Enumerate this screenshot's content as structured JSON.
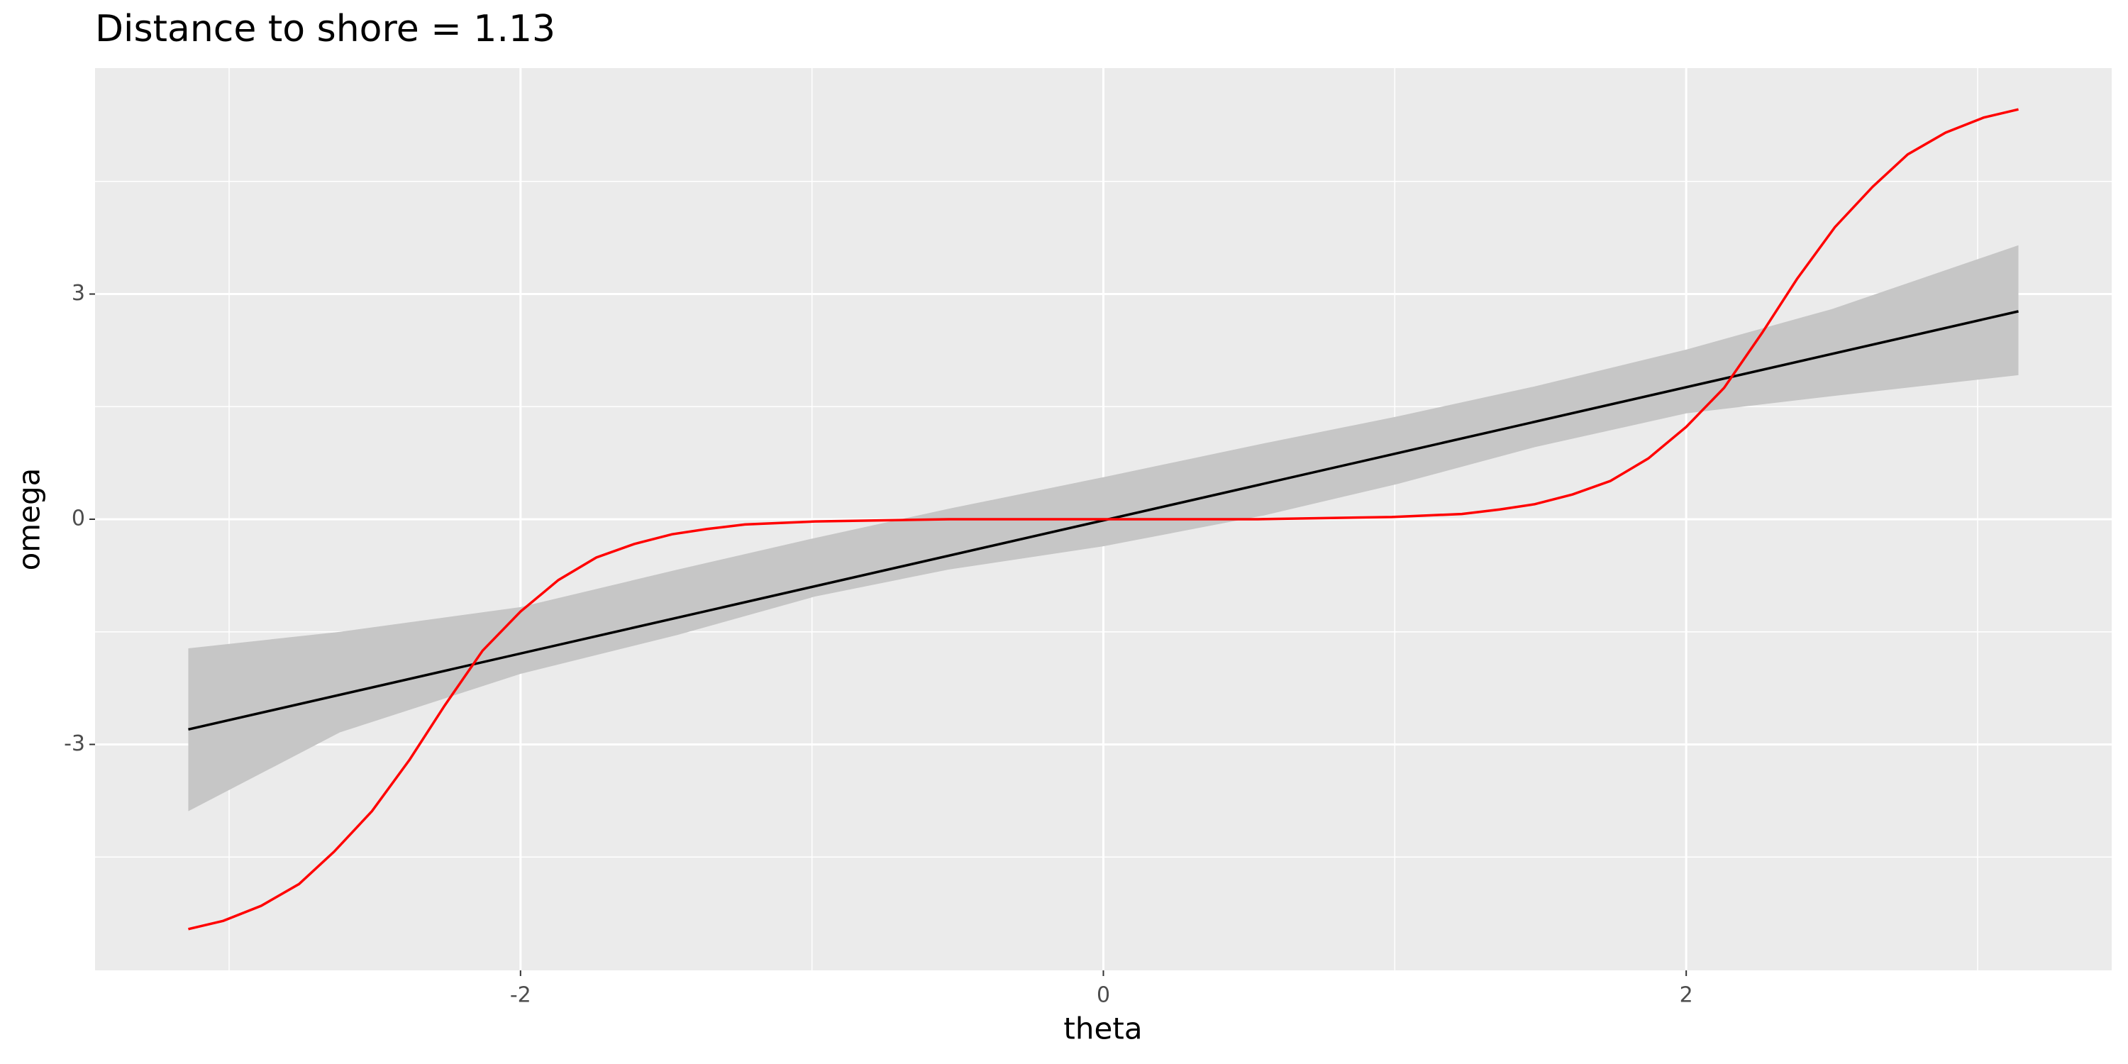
{
  "chart_data": {
    "type": "line",
    "title": "Distance to shore = 1.13",
    "xlabel": "theta",
    "ylabel": "omega",
    "xlim": [
      -3.46,
      3.46
    ],
    "ylim": [
      -6.01,
      6.01
    ],
    "xticks": [
      -2,
      0,
      2
    ],
    "yticks": [
      -3,
      0,
      3
    ],
    "xminor": [
      -3,
      -1,
      1,
      3
    ],
    "yminor": [
      -4.5,
      -1.5,
      1.5,
      4.5
    ],
    "grid": true,
    "ribbon": {
      "color": "#c6c6c6",
      "x": [
        -3.14,
        -2.62,
        -2.0,
        -1.46,
        -0.99,
        -0.53,
        0,
        0.55,
        1.01,
        1.48,
        2.0,
        2.5,
        3.14
      ],
      "lower": [
        -3.89,
        -2.84,
        -2.06,
        -1.54,
        -1.03,
        -0.67,
        -0.36,
        0.05,
        0.47,
        0.96,
        1.41,
        1.64,
        1.92
      ],
      "upper": [
        -1.72,
        -1.5,
        -1.17,
        -0.67,
        -0.25,
        0.14,
        0.56,
        1.01,
        1.37,
        1.77,
        2.26,
        2.8,
        3.65
      ]
    },
    "series": [
      {
        "color": "#000000",
        "x": [
          -3.14,
          3.14
        ],
        "values": [
          -2.8,
          2.77
        ]
      },
      {
        "color": "#ff0000",
        "x": [
          -3.14,
          -3.02,
          -2.89,
          -2.76,
          -2.64,
          -2.51,
          -2.38,
          -2.26,
          -2.13,
          -2.0,
          -1.87,
          -1.74,
          -1.61,
          -1.48,
          -1.36,
          -1.23,
          -0.99,
          -0.53,
          0,
          0.53,
          0.99,
          1.23,
          1.36,
          1.48,
          1.61,
          1.74,
          1.87,
          2.0,
          2.13,
          2.26,
          2.38,
          2.51,
          2.64,
          2.76,
          2.89,
          3.02,
          3.14
        ],
        "values": [
          -5.46,
          -5.35,
          -5.15,
          -4.86,
          -4.43,
          -3.89,
          -3.2,
          -2.48,
          -1.75,
          -1.23,
          -0.81,
          -0.51,
          -0.33,
          -0.2,
          -0.13,
          -0.07,
          -0.03,
          0,
          0,
          0,
          0.03,
          0.07,
          0.13,
          0.2,
          0.33,
          0.51,
          0.81,
          1.23,
          1.75,
          2.48,
          3.2,
          3.89,
          4.43,
          4.86,
          5.15,
          5.35,
          5.46
        ]
      }
    ]
  }
}
